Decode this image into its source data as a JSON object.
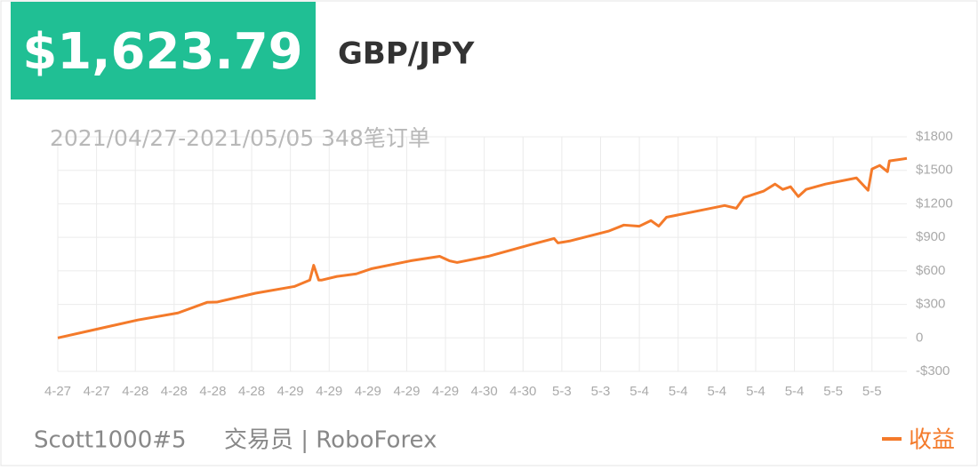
{
  "header": {
    "amount": "$1,623.79",
    "pair": "GBP/JPY"
  },
  "chart_data": {
    "type": "line",
    "title": "2021/04/27-2021/05/05 348笔订单",
    "x": [
      0,
      1.03,
      2.06,
      3.1,
      3.85,
      4.1,
      5.1,
      6.1,
      6.5,
      6.6,
      6.73,
      6.8,
      7.2,
      7.7,
      8.1,
      9.1,
      9.85,
      10.1,
      10.3,
      11.1,
      12.2,
      12.8,
      12.9,
      13.2,
      14.2,
      14.6,
      15.0,
      15.3,
      15.5,
      15.7,
      17.2,
      17.5,
      17.7,
      18.2,
      18.5,
      18.7,
      18.9,
      19.1,
      19.3,
      19.8,
      20.6,
      20.9,
      21.0,
      21.2,
      21.4,
      21.45,
      21.9
    ],
    "series": [
      {
        "name": "收益",
        "color": "#f47a2a",
        "values": [
          0,
          80,
          160,
          223,
          318,
          320,
          400,
          460,
          517,
          650,
          517,
          517,
          550,
          573,
          620,
          690,
          730,
          690,
          675,
          730,
          835,
          890,
          850,
          867,
          955,
          1010,
          1000,
          1050,
          1000,
          1080,
          1185,
          1160,
          1257,
          1313,
          1377,
          1329,
          1353,
          1265,
          1329,
          1377,
          1432,
          1321,
          1512,
          1544,
          1488,
          1584,
          1607
        ]
      }
    ],
    "xlim": [
      0,
      21.9
    ],
    "xticks": [
      {
        "value": 0,
        "label": "4-27"
      },
      {
        "value": 1,
        "label": "4-27"
      },
      {
        "value": 2,
        "label": "4-28"
      },
      {
        "value": 3,
        "label": "4-28"
      },
      {
        "value": 4,
        "label": "4-28"
      },
      {
        "value": 5,
        "label": "4-28"
      },
      {
        "value": 6,
        "label": "4-29"
      },
      {
        "value": 7,
        "label": "4-29"
      },
      {
        "value": 8,
        "label": "4-29"
      },
      {
        "value": 9,
        "label": "4-29"
      },
      {
        "value": 10,
        "label": "4-29"
      },
      {
        "value": 11,
        "label": "4-30"
      },
      {
        "value": 12,
        "label": "4-30"
      },
      {
        "value": 13,
        "label": "5-3"
      },
      {
        "value": 14,
        "label": "5-3"
      },
      {
        "value": 15,
        "label": "5-4"
      },
      {
        "value": 16,
        "label": "5-4"
      },
      {
        "value": 17,
        "label": "5-4"
      },
      {
        "value": 18,
        "label": "5-4"
      },
      {
        "value": 19,
        "label": "5-4"
      },
      {
        "value": 20,
        "label": "5-5"
      },
      {
        "value": 21,
        "label": "5-5"
      }
    ],
    "ylim": [
      -300,
      1800
    ],
    "yticks": [
      {
        "value": 1800,
        "label": "$1800"
      },
      {
        "value": 1500,
        "label": "$1500"
      },
      {
        "value": 1200,
        "label": "$1200"
      },
      {
        "value": 900,
        "label": "$900"
      },
      {
        "value": 600,
        "label": "$600"
      },
      {
        "value": 300,
        "label": "$300"
      },
      0,
      {
        "value": -300,
        "label": "-$300"
      }
    ],
    "grid": true,
    "legend": "bottom-right"
  },
  "footer": {
    "trader": "Scott1000#5",
    "role": "交易员 | RoboForex"
  }
}
